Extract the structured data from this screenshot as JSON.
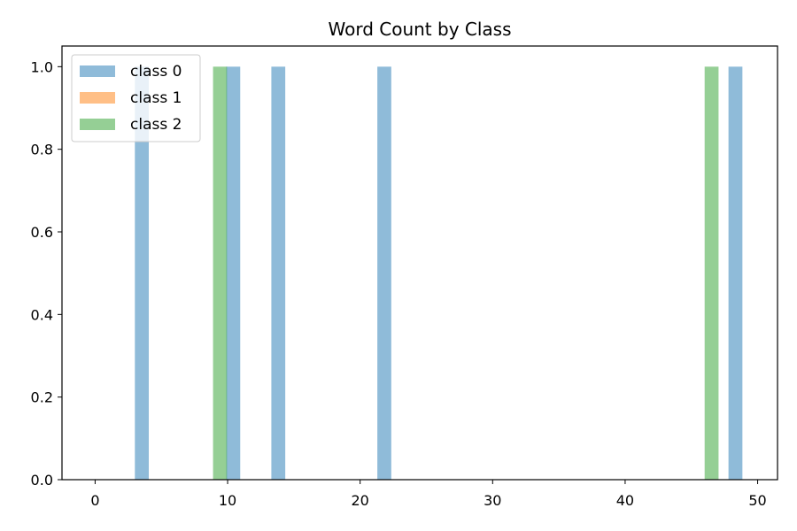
{
  "chart_data": {
    "type": "bar",
    "title": "Word Count by Class",
    "xlabel": "",
    "ylabel": "",
    "xlim": [
      -2.5,
      51.5
    ],
    "ylim": [
      0,
      1.05
    ],
    "x_ticks": [
      0,
      10,
      20,
      30,
      40,
      50
    ],
    "y_ticks": [
      0.0,
      0.2,
      0.4,
      0.6,
      0.8,
      1.0
    ],
    "x_tick_labels": [
      "0",
      "10",
      "20",
      "30",
      "40",
      "50"
    ],
    "y_tick_labels": [
      "0.0",
      "0.2",
      "0.4",
      "0.6",
      "0.8",
      "1.0"
    ],
    "bin_width": 1.05,
    "grid": false,
    "legend_position": "top-left",
    "series": [
      {
        "name": "class 0",
        "color": "#1f77b4",
        "bars": [
          {
            "x_start": 3.0,
            "value": 1.0
          },
          {
            "x_start": 9.9,
            "value": 1.0
          },
          {
            "x_start": 13.3,
            "value": 1.0
          },
          {
            "x_start": 21.3,
            "value": 1.0
          },
          {
            "x_start": 47.8,
            "value": 1.0
          }
        ]
      },
      {
        "name": "class 1",
        "color": "#ff7f0e",
        "bars": []
      },
      {
        "name": "class 2",
        "color": "#2ca02c",
        "bars": [
          {
            "x_start": 8.9,
            "value": 1.0
          },
          {
            "x_start": 46.0,
            "value": 1.0
          }
        ]
      }
    ]
  }
}
